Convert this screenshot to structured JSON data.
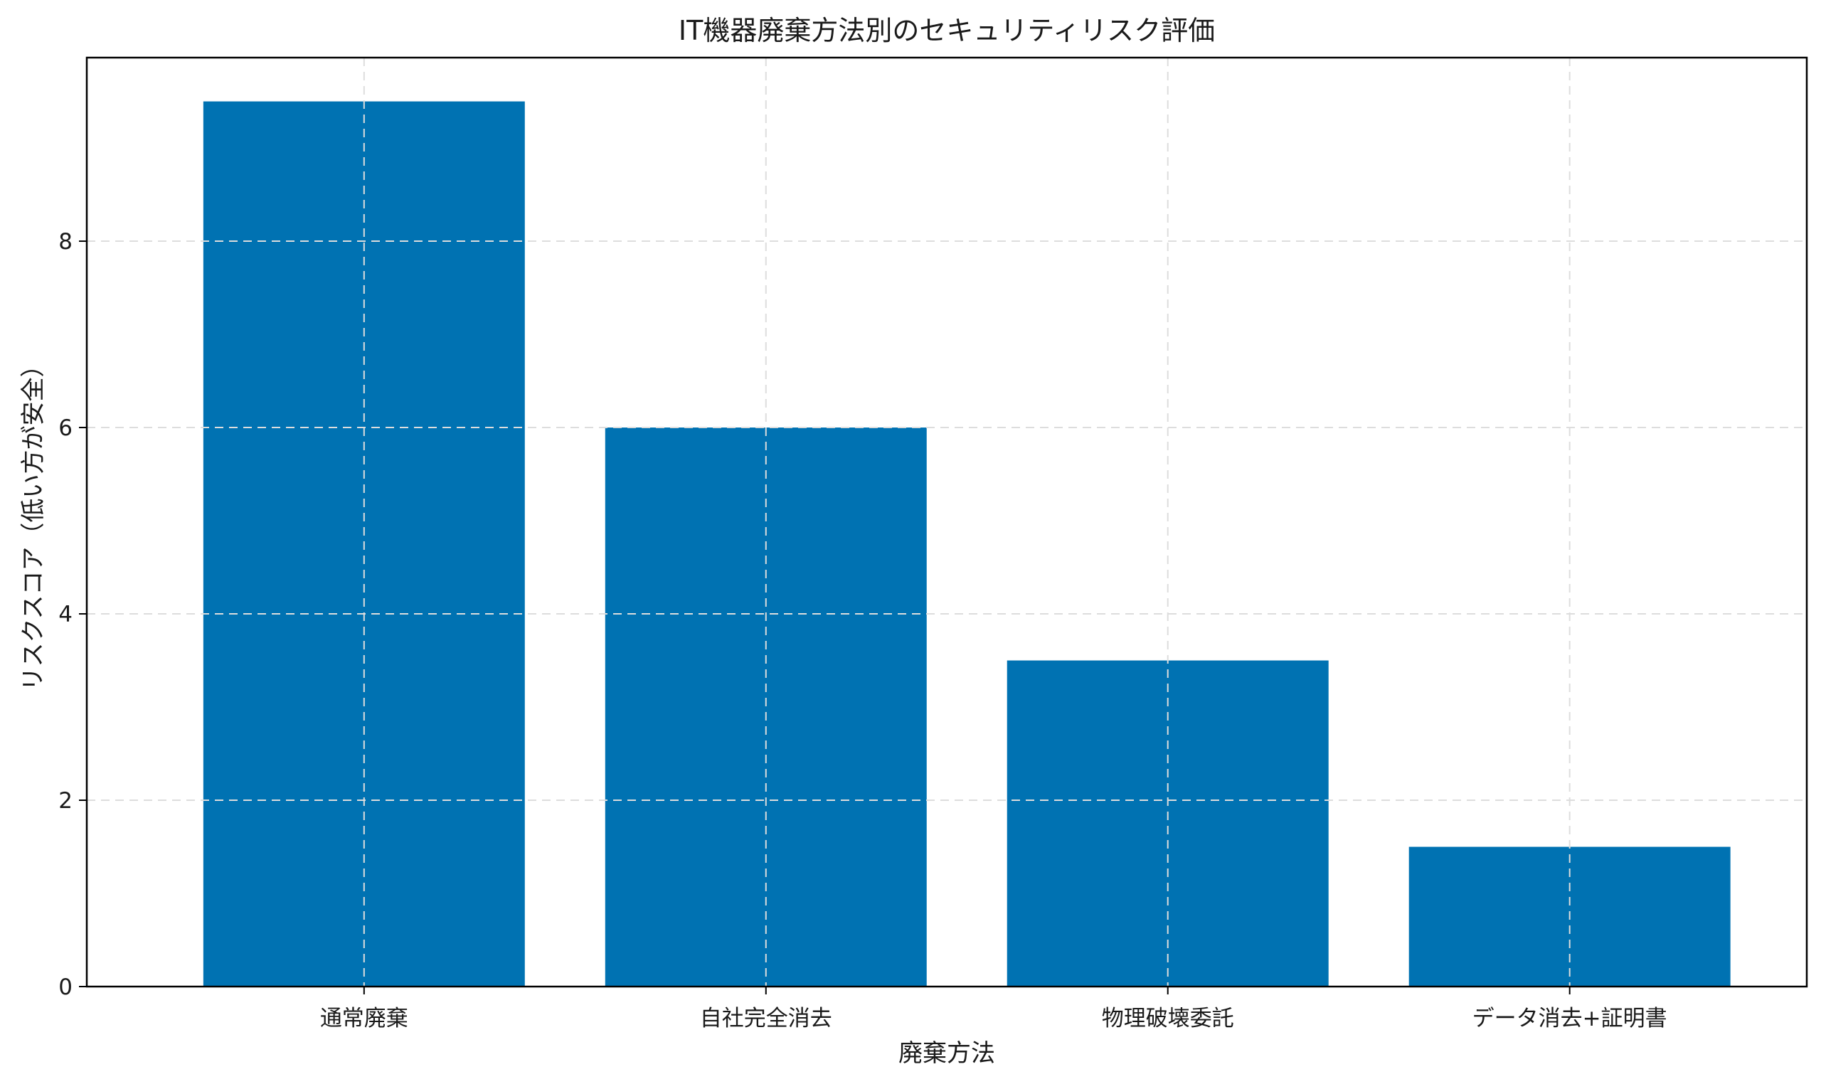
{
  "chart_data": {
    "type": "bar",
    "title": "IT機器廃棄方法別のセキュリティリスク評価",
    "xlabel": "廃棄方法",
    "ylabel": "リスクスコア（低い方が安全）",
    "categories": [
      "通常廃棄",
      "自社完全消去",
      "物理破壊委託",
      "データ消去+証明書"
    ],
    "values": [
      9.5,
      6.0,
      3.5,
      1.5
    ],
    "ylim": [
      0,
      9.97
    ],
    "yticks": [
      0,
      2,
      4,
      6,
      8
    ],
    "ytick_labels": [
      "0",
      "2",
      "4",
      "6",
      "8"
    ],
    "grid": true,
    "legend": false,
    "colors": {
      "bar": "#0072b2",
      "axis": "#000000",
      "grid": "#dddddd",
      "background": "#ffffff"
    }
  }
}
